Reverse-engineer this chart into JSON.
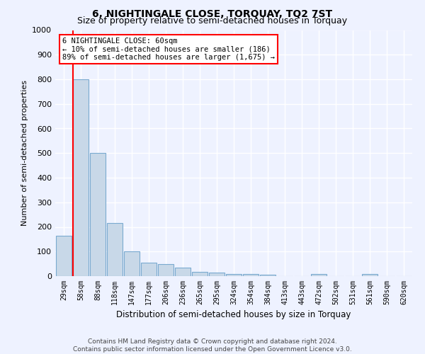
{
  "title": "6, NIGHTINGALE CLOSE, TORQUAY, TQ2 7ST",
  "subtitle": "Size of property relative to semi-detached houses in Torquay",
  "xlabel": "Distribution of semi-detached houses by size in Torquay",
  "ylabel": "Number of semi-detached properties",
  "footer_line1": "Contains HM Land Registry data © Crown copyright and database right 2024.",
  "footer_line2": "Contains public sector information licensed under the Open Government Licence v3.0.",
  "categories": [
    "29sqm",
    "58sqm",
    "88sqm",
    "118sqm",
    "147sqm",
    "177sqm",
    "206sqm",
    "236sqm",
    "265sqm",
    "295sqm",
    "324sqm",
    "354sqm",
    "384sqm",
    "413sqm",
    "443sqm",
    "472sqm",
    "502sqm",
    "531sqm",
    "561sqm",
    "590sqm",
    "620sqm"
  ],
  "values": [
    165,
    800,
    500,
    215,
    100,
    55,
    50,
    35,
    18,
    13,
    10,
    8,
    5,
    0,
    0,
    8,
    0,
    0,
    8,
    0,
    0
  ],
  "ylim": [
    0,
    1000
  ],
  "yticks": [
    0,
    100,
    200,
    300,
    400,
    500,
    600,
    700,
    800,
    900,
    1000
  ],
  "bar_color": "#c8d8e8",
  "bar_edge_color": "#7aaad0",
  "red_line_x": 1,
  "annotation_text": "6 NIGHTINGALE CLOSE: 60sqm\n← 10% of semi-detached houses are smaller (186)\n89% of semi-detached houses are larger (1,675) →",
  "annotation_box_color": "white",
  "annotation_border_color": "red",
  "background_color": "#eef2ff",
  "grid_color": "white",
  "title_fontsize": 10,
  "subtitle_fontsize": 9,
  "annot_fontsize": 7.5
}
